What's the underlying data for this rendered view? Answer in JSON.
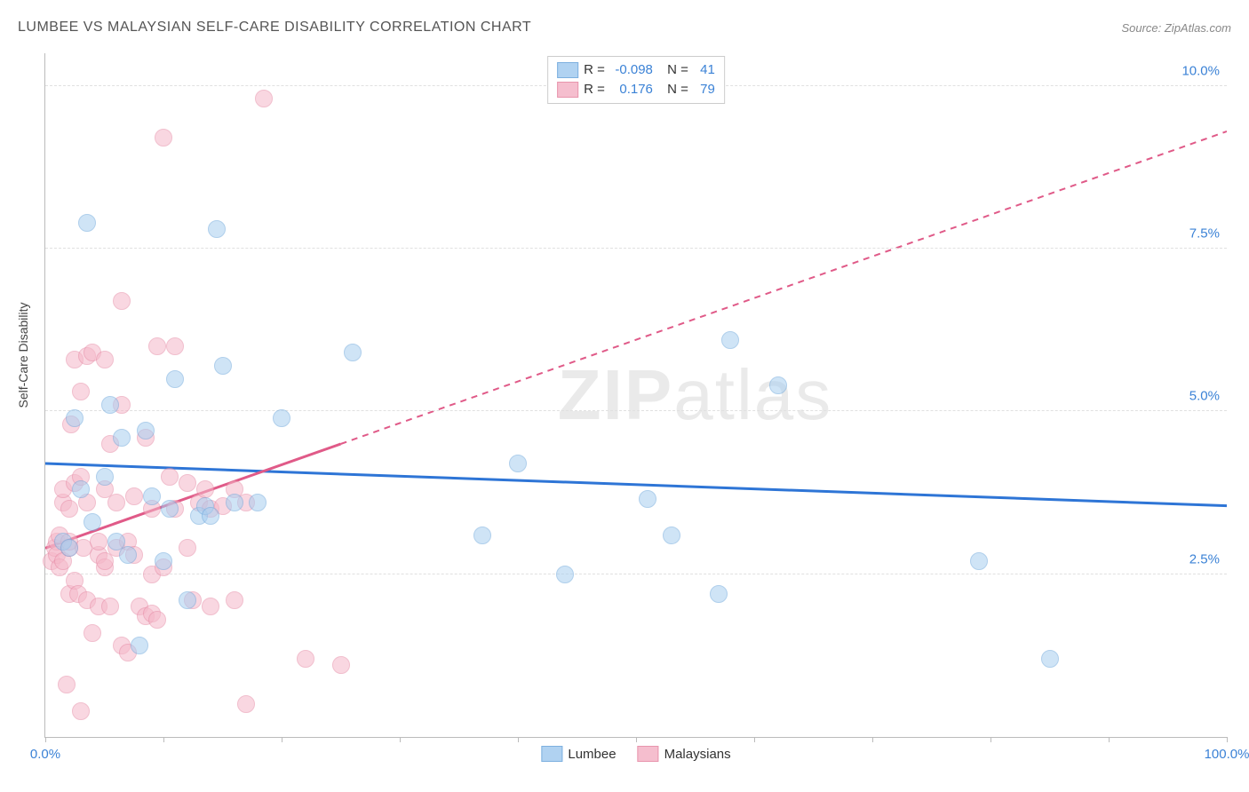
{
  "header": {
    "title": "LUMBEE VS MALAYSIAN SELF-CARE DISABILITY CORRELATION CHART",
    "source": "Source: ZipAtlas.com"
  },
  "watermark": {
    "zip": "ZIP",
    "atlas": "atlas"
  },
  "chart": {
    "type": "scatter",
    "y_axis_label": "Self-Care Disability",
    "xlim": [
      0,
      100
    ],
    "ylim": [
      0,
      10.5
    ],
    "x_ticks": [
      0,
      10,
      20,
      30,
      40,
      50,
      60,
      70,
      80,
      90,
      100
    ],
    "x_tick_labels": {
      "0": "0.0%",
      "100": "100.0%"
    },
    "y_gridlines": [
      2.5,
      5.0,
      7.5,
      10.0
    ],
    "y_tick_labels": {
      "2.5": "2.5%",
      "5.0": "5.0%",
      "7.5": "7.5%",
      "10.0": "10.0%"
    },
    "background_color": "#ffffff",
    "grid_color": "#e0e0e0",
    "axis_color": "#bbbbbb",
    "x_label_color": "#3b82d6",
    "y_label_color": "#3b82d6",
    "series": {
      "lumbee": {
        "label": "Lumbee",
        "fill_color": "#a8cef0",
        "fill_opacity": 0.55,
        "border_color": "#6fa8dc",
        "trend_color": "#2e75d6",
        "trend_style": "solid",
        "trend_width": 3,
        "trend": {
          "x1": 0,
          "y1": 4.2,
          "x2": 100,
          "y2": 3.55
        },
        "r": "-0.098",
        "n": "41",
        "points": [
          [
            1.5,
            3.0
          ],
          [
            2,
            2.9
          ],
          [
            2.5,
            4.9
          ],
          [
            3,
            3.8
          ],
          [
            3.5,
            7.9
          ],
          [
            4,
            3.3
          ],
          [
            5,
            4.0
          ],
          [
            5.5,
            5.1
          ],
          [
            6,
            3.0
          ],
          [
            6.5,
            4.6
          ],
          [
            7,
            2.8
          ],
          [
            8,
            1.4
          ],
          [
            8.5,
            4.7
          ],
          [
            9,
            3.7
          ],
          [
            10,
            2.7
          ],
          [
            10.5,
            3.5
          ],
          [
            11,
            5.5
          ],
          [
            12,
            2.1
          ],
          [
            13,
            3.4
          ],
          [
            13.5,
            3.55
          ],
          [
            14,
            3.4
          ],
          [
            14.5,
            7.8
          ],
          [
            15,
            5.7
          ],
          [
            16,
            3.6
          ],
          [
            18,
            3.6
          ],
          [
            20,
            4.9
          ],
          [
            26,
            5.9
          ],
          [
            40,
            4.2
          ],
          [
            37,
            3.1
          ],
          [
            44,
            2.5
          ],
          [
            51,
            3.65
          ],
          [
            53,
            3.1
          ],
          [
            57,
            2.2
          ],
          [
            58,
            6.1
          ],
          [
            62,
            5.4
          ],
          [
            79,
            2.7
          ],
          [
            85,
            1.2
          ]
        ]
      },
      "malaysians": {
        "label": "Malaysians",
        "fill_color": "#f5b8c9",
        "fill_opacity": 0.55,
        "border_color": "#e68aa5",
        "trend_color": "#e05a88",
        "trend_style_solid_until_x": 25,
        "trend_style": "dashed",
        "trend_width": 2,
        "trend": {
          "x1": 0,
          "y1": 2.9,
          "x2": 100,
          "y2": 9.3
        },
        "r": "0.176",
        "n": "79",
        "points": [
          [
            0.5,
            2.7
          ],
          [
            0.8,
            2.9
          ],
          [
            1,
            3.0
          ],
          [
            1,
            2.8
          ],
          [
            1.2,
            3.1
          ],
          [
            1.2,
            2.6
          ],
          [
            1.5,
            2.7
          ],
          [
            1.5,
            3.6
          ],
          [
            1.5,
            3.8
          ],
          [
            1.8,
            0.8
          ],
          [
            2,
            2.9
          ],
          [
            2,
            2.2
          ],
          [
            2,
            3.5
          ],
          [
            2,
            3.0
          ],
          [
            2.2,
            4.8
          ],
          [
            2.5,
            5.8
          ],
          [
            2.5,
            2.4
          ],
          [
            2.5,
            3.9
          ],
          [
            2.8,
            2.2
          ],
          [
            3,
            0.4
          ],
          [
            3,
            5.3
          ],
          [
            3,
            4.0
          ],
          [
            3.2,
            2.9
          ],
          [
            3.5,
            3.6
          ],
          [
            3.5,
            5.85
          ],
          [
            3.5,
            2.1
          ],
          [
            4,
            1.6
          ],
          [
            4,
            5.9
          ],
          [
            4.5,
            2.8
          ],
          [
            4.5,
            2.0
          ],
          [
            4.5,
            3.0
          ],
          [
            5,
            2.6
          ],
          [
            5,
            3.8
          ],
          [
            5,
            5.8
          ],
          [
            5,
            2.7
          ],
          [
            5.5,
            2.0
          ],
          [
            5.5,
            4.5
          ],
          [
            6,
            2.9
          ],
          [
            6,
            3.6
          ],
          [
            6.5,
            1.4
          ],
          [
            6.5,
            6.7
          ],
          [
            6.5,
            5.1
          ],
          [
            7,
            3.0
          ],
          [
            7,
            1.3
          ],
          [
            7.5,
            2.8
          ],
          [
            7.5,
            3.7
          ],
          [
            8,
            2.0
          ],
          [
            8.5,
            4.6
          ],
          [
            8.5,
            1.85
          ],
          [
            9,
            2.5
          ],
          [
            9,
            1.9
          ],
          [
            9,
            3.5
          ],
          [
            9.5,
            6.0
          ],
          [
            9.5,
            1.8
          ],
          [
            10,
            9.2
          ],
          [
            10,
            2.6
          ],
          [
            10.5,
            4.0
          ],
          [
            11,
            6.0
          ],
          [
            11,
            3.5
          ],
          [
            12,
            3.9
          ],
          [
            12,
            2.9
          ],
          [
            12.5,
            2.1
          ],
          [
            13,
            3.6
          ],
          [
            13.5,
            3.8
          ],
          [
            14,
            3.5
          ],
          [
            14,
            2.0
          ],
          [
            15,
            3.55
          ],
          [
            16,
            3.8
          ],
          [
            16,
            2.1
          ],
          [
            17,
            3.6
          ],
          [
            17,
            0.5
          ],
          [
            18.5,
            9.8
          ],
          [
            22,
            1.2
          ],
          [
            25,
            1.1
          ]
        ]
      }
    }
  },
  "legend_top": {
    "r_label": "R =",
    "n_label": "N ="
  }
}
